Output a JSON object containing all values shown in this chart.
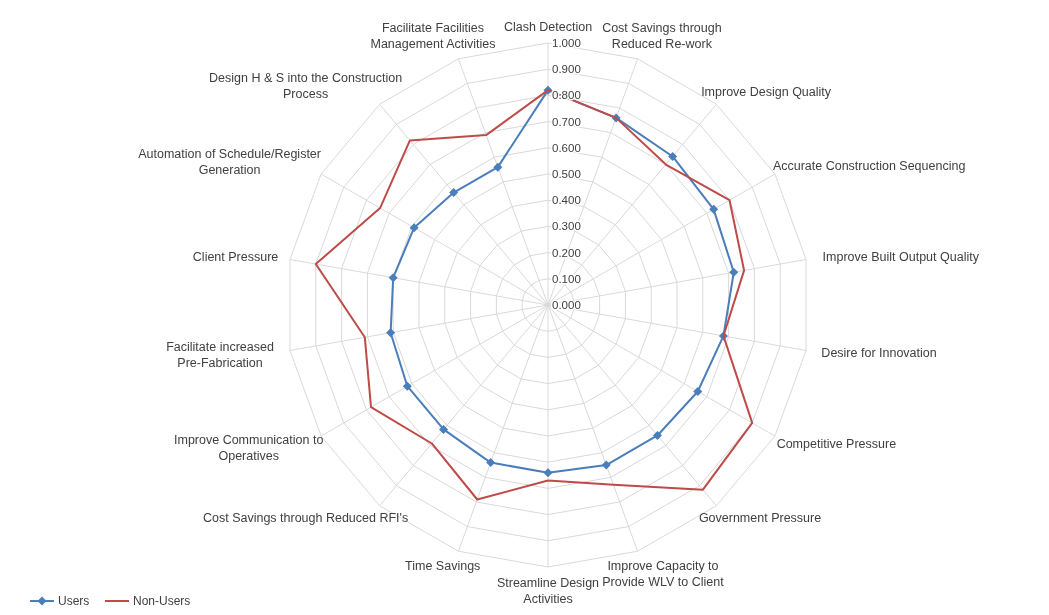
{
  "chart_data": {
    "type": "radar",
    "categories": [
      "Clash Detection",
      "Cost Savings through Reduced Re-work",
      "Improve Design Quality",
      "Accurate Construction Sequencing",
      "Improve Built Output Quality",
      "Desire for Innovation",
      "Competitive Pressure",
      "Government Pressure",
      "Improve Capacity to Provide WLV to Client",
      "Streamline Design Activities",
      "Time Savings",
      "Cost Savings through Reduced RFI's",
      "Improve Communication to Operatives",
      "Facilitate increased Pre-Fabrication",
      "Client Pressure",
      "Automation of Schedule/Register Generation",
      "Design H & S into the Construction Process",
      "Facilitate Facilities Management Activities"
    ],
    "series": [
      {
        "name": "Users",
        "color": "#4a7ebb",
        "marker": "diamond",
        "values": [
          0.82,
          0.76,
          0.74,
          0.73,
          0.72,
          0.68,
          0.66,
          0.65,
          0.65,
          0.64,
          0.64,
          0.62,
          0.62,
          0.61,
          0.6,
          0.59,
          0.56,
          0.56
        ]
      },
      {
        "name": "Non-Users",
        "color": "#be4b48",
        "marker": "none",
        "values": [
          0.82,
          0.76,
          0.7,
          0.8,
          0.76,
          0.68,
          0.9,
          0.92,
          0.73,
          0.67,
          0.79,
          0.69,
          0.78,
          0.71,
          0.9,
          0.74,
          0.82,
          0.69
        ]
      }
    ],
    "ylim": [
      0,
      1
    ],
    "yticks": [
      {
        "value": 0,
        "label": "0.000"
      },
      {
        "value": 0.1,
        "label": "0.100"
      },
      {
        "value": 0.2,
        "label": "0.200"
      },
      {
        "value": 0.3,
        "label": "0.300"
      },
      {
        "value": 0.4,
        "label": "0.400"
      },
      {
        "value": 0.5,
        "label": "0.500"
      },
      {
        "value": 0.6,
        "label": "0.600"
      },
      {
        "value": 0.7,
        "label": "0.700"
      },
      {
        "value": 0.8,
        "label": "0.800"
      },
      {
        "value": 0.9,
        "label": "0.900"
      },
      {
        "value": 1,
        "label": "1.000"
      }
    ],
    "grid": true,
    "legend": "bottom left"
  }
}
